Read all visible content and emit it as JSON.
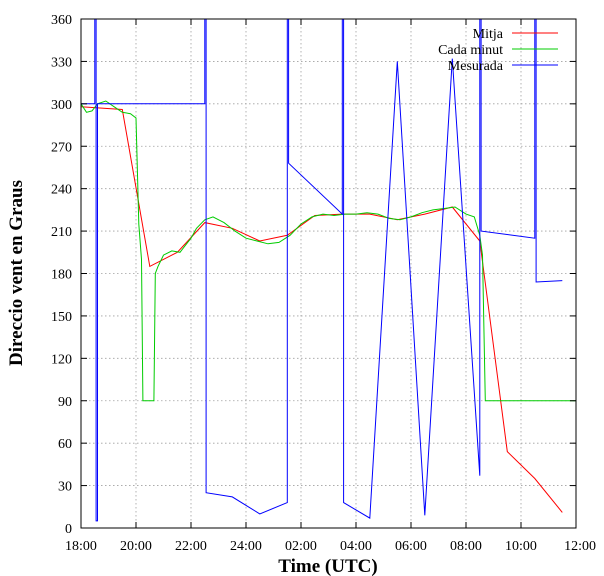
{
  "chart_data": {
    "type": "line",
    "title": "",
    "xlabel": "Time (UTC)",
    "ylabel": "Direccio vent en Graus",
    "xlim": [
      0,
      18
    ],
    "ylim": [
      0,
      360
    ],
    "x_ticks": [
      {
        "x": 0,
        "label": "18:00"
      },
      {
        "x": 2,
        "label": "20:00"
      },
      {
        "x": 4,
        "label": "22:00"
      },
      {
        "x": 6,
        "label": "24:00"
      },
      {
        "x": 8,
        "label": "02:00"
      },
      {
        "x": 10,
        "label": "04:00"
      },
      {
        "x": 12,
        "label": "06:00"
      },
      {
        "x": 14,
        "label": "08:00"
      },
      {
        "x": 16,
        "label": "10:00"
      },
      {
        "x": 18,
        "label": "12:00"
      }
    ],
    "y_ticks": [
      0,
      30,
      60,
      90,
      120,
      150,
      180,
      210,
      240,
      270,
      300,
      330,
      360
    ],
    "grid": true,
    "legend_position": "top-right",
    "series": [
      {
        "name": "Mitja",
        "color": "#ff0000",
        "points": [
          [
            0,
            298
          ],
          [
            1.5,
            296
          ],
          [
            2.5,
            185
          ],
          [
            3.5,
            195
          ],
          [
            4.5,
            216
          ],
          [
            5.5,
            212
          ],
          [
            6.5,
            203
          ],
          [
            7.5,
            207
          ],
          [
            8.5,
            221
          ],
          [
            9.5,
            222
          ],
          [
            10.5,
            222
          ],
          [
            11.5,
            218
          ],
          [
            12.5,
            222
          ],
          [
            13.5,
            227
          ],
          [
            14.5,
            203
          ],
          [
            15.5,
            54
          ],
          [
            16.5,
            35
          ],
          [
            17.5,
            11
          ]
        ]
      },
      {
        "name": "Cada minut",
        "color": "#00cc00",
        "points": [
          [
            0,
            300
          ],
          [
            0.2,
            294
          ],
          [
            0.4,
            295
          ],
          [
            0.6,
            300
          ],
          [
            0.9,
            302
          ],
          [
            1.2,
            298
          ],
          [
            1.5,
            294
          ],
          [
            1.8,
            293
          ],
          [
            2.0,
            290
          ],
          [
            2.1,
            215
          ],
          [
            2.2,
            190
          ],
          [
            2.25,
            90
          ],
          [
            2.65,
            90
          ],
          [
            2.7,
            180
          ],
          [
            2.8,
            185
          ],
          [
            3.0,
            193
          ],
          [
            3.3,
            196
          ],
          [
            3.6,
            195
          ],
          [
            3.8,
            200
          ],
          [
            4.0,
            205
          ],
          [
            4.2,
            212
          ],
          [
            4.5,
            218
          ],
          [
            4.8,
            220
          ],
          [
            5.2,
            216
          ],
          [
            5.6,
            210
          ],
          [
            6.0,
            205
          ],
          [
            6.4,
            203
          ],
          [
            6.8,
            201
          ],
          [
            7.2,
            202
          ],
          [
            7.6,
            207
          ],
          [
            8.0,
            215
          ],
          [
            8.4,
            220
          ],
          [
            8.8,
            222
          ],
          [
            9.2,
            221
          ],
          [
            9.6,
            222
          ],
          [
            10.0,
            222
          ],
          [
            10.4,
            223
          ],
          [
            10.8,
            222
          ],
          [
            11.2,
            219
          ],
          [
            11.6,
            218
          ],
          [
            12.0,
            220
          ],
          [
            12.4,
            223
          ],
          [
            12.8,
            225
          ],
          [
            13.2,
            226
          ],
          [
            13.6,
            227
          ],
          [
            14.0,
            222
          ],
          [
            14.3,
            220
          ],
          [
            14.5,
            207
          ],
          [
            14.6,
            193
          ],
          [
            14.7,
            90
          ],
          [
            18,
            90
          ]
        ]
      },
      {
        "name": "Mesurada",
        "color": "#0000ff",
        "points": [
          [
            0,
            300
          ],
          [
            0.5,
            300
          ],
          [
            0.5,
            360
          ],
          [
            0.55,
            360
          ],
          [
            0.55,
            5
          ],
          [
            0.6,
            5
          ],
          [
            0.6,
            300
          ],
          [
            4.5,
            300
          ],
          [
            4.5,
            360
          ],
          [
            4.55,
            360
          ],
          [
            4.55,
            25
          ],
          [
            5.5,
            22
          ],
          [
            6.5,
            10
          ],
          [
            7.5,
            18
          ],
          [
            7.5,
            360
          ],
          [
            7.55,
            360
          ],
          [
            7.55,
            258
          ],
          [
            9.5,
            222
          ],
          [
            9.5,
            360
          ],
          [
            9.55,
            360
          ],
          [
            9.55,
            18
          ],
          [
            10.5,
            7
          ],
          [
            11.5,
            330
          ],
          [
            12.5,
            9
          ],
          [
            13.5,
            332
          ],
          [
            14.5,
            37
          ],
          [
            14.5,
            360
          ],
          [
            14.55,
            360
          ],
          [
            14.55,
            210
          ],
          [
            16.5,
            205
          ],
          [
            16.5,
            360
          ],
          [
            16.55,
            360
          ],
          [
            16.55,
            174
          ],
          [
            17.5,
            175
          ]
        ]
      }
    ]
  }
}
